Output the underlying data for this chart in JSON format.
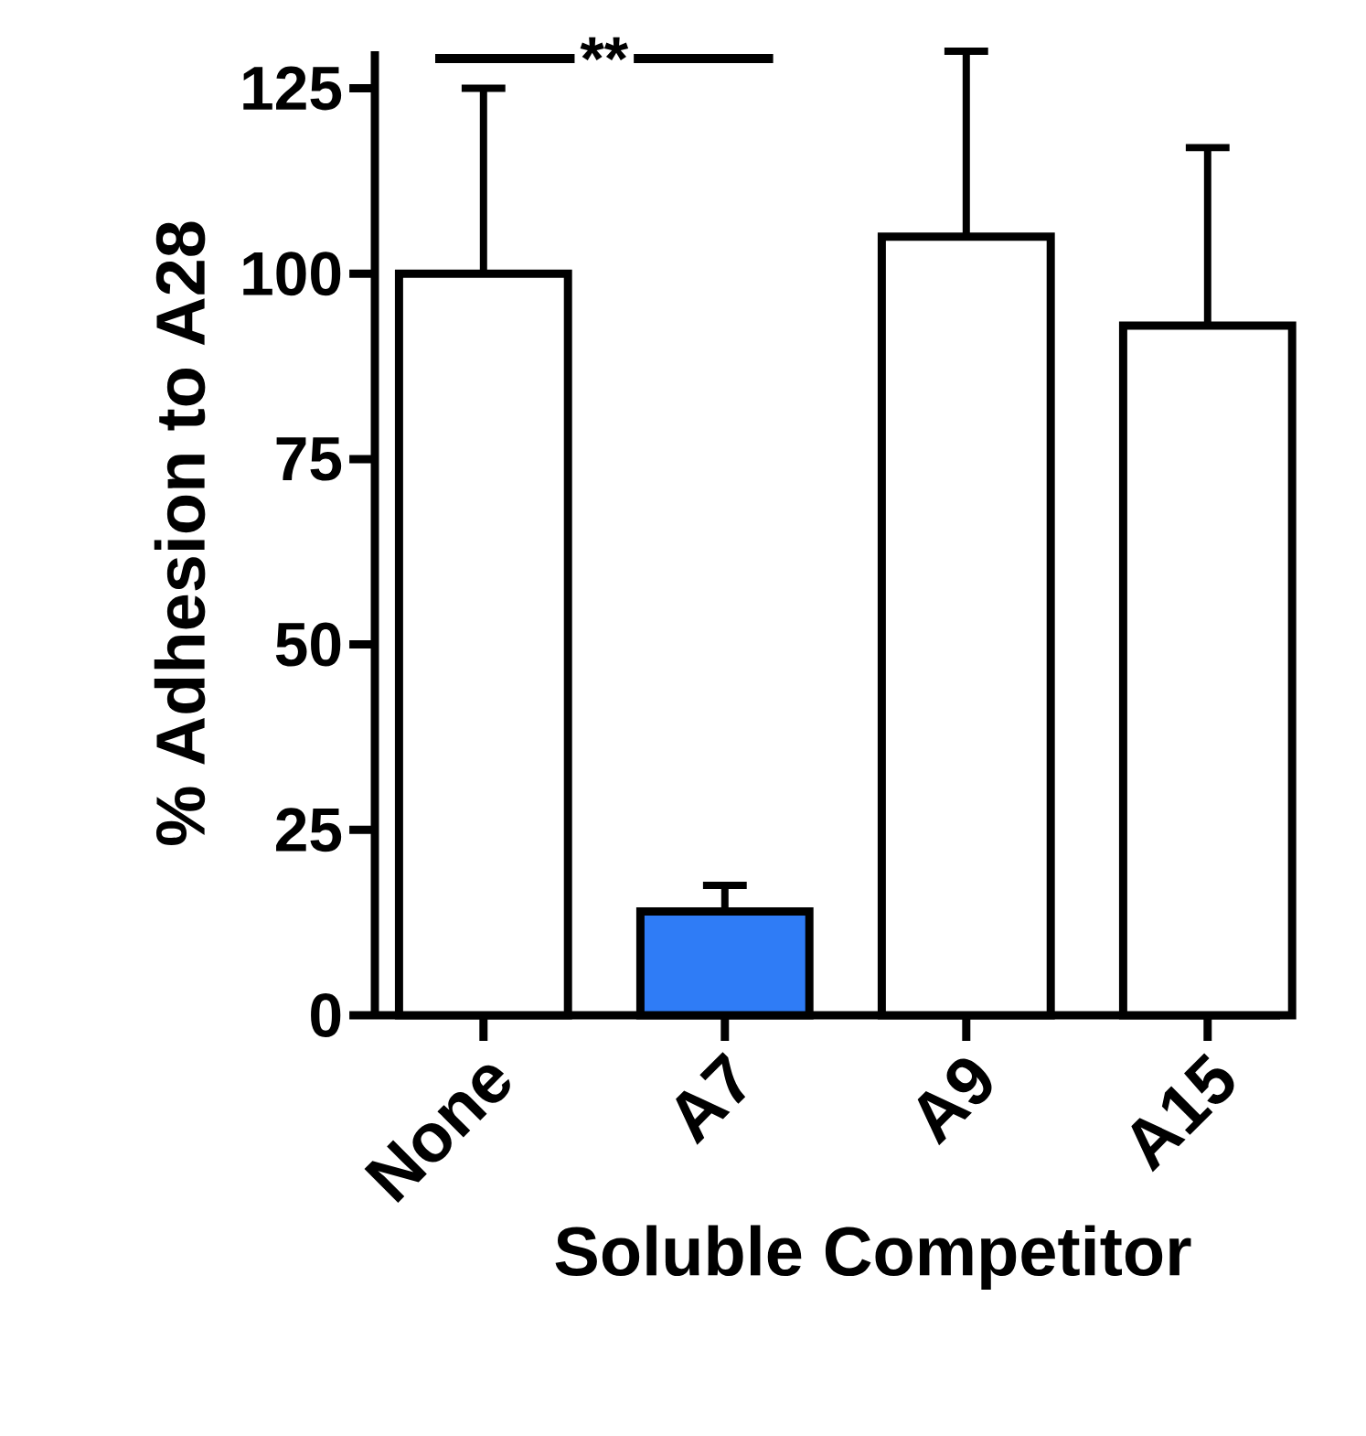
{
  "chart_data": {
    "type": "bar",
    "xlabel": "Soluble Competitor",
    "ylabel": "% Adhesion to A28",
    "categories": [
      "None",
      "A7",
      "A9",
      "A15"
    ],
    "values": [
      100,
      14,
      105,
      93
    ],
    "errors": [
      25,
      3.5,
      25,
      24
    ],
    "colors": [
      "#ffffff",
      "#2f7cf6",
      "#ffffff",
      "#ffffff"
    ],
    "ylim": [
      0,
      130
    ],
    "yticks": [
      0,
      25,
      50,
      75,
      100,
      125
    ],
    "annotations": [
      "**"
    ]
  }
}
